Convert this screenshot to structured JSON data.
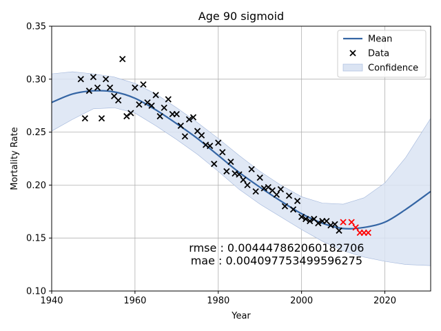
{
  "chart_data": {
    "type": "line",
    "title": "Age 90 sigmoid",
    "xlabel": "Year",
    "ylabel": "Mortality Rate",
    "xlim": [
      1940,
      2031
    ],
    "ylim": [
      0.1,
      0.35
    ],
    "x_ticks": [
      1940,
      1960,
      1980,
      2000,
      2020
    ],
    "y_ticks": [
      0.1,
      0.15,
      0.2,
      0.25,
      0.3,
      0.35
    ],
    "x_tick_labels": [
      "1940",
      "1960",
      "1980",
      "2000",
      "2020"
    ],
    "y_tick_labels": [
      "0.10",
      "0.15",
      "0.20",
      "0.25",
      "0.30",
      "0.35"
    ],
    "grid": true,
    "legend_position": "top-right",
    "legend": [
      {
        "label": "Mean",
        "kind": "line",
        "color": "#3465a4"
      },
      {
        "label": "Data",
        "kind": "marker-x",
        "color": "#000000"
      },
      {
        "label": "Confidence",
        "kind": "band",
        "color": "#dbe4f3"
      }
    ],
    "mean_curve": {
      "name": "Mean",
      "color": "#3465a4",
      "x": [
        1940,
        1945,
        1950,
        1955,
        1960,
        1965,
        1970,
        1975,
        1980,
        1985,
        1990,
        1995,
        2000,
        2005,
        2010,
        2015,
        2020,
        2025,
        2031
      ],
      "y": [
        0.278,
        0.286,
        0.289,
        0.288,
        0.282,
        0.271,
        0.258,
        0.244,
        0.228,
        0.212,
        0.198,
        0.185,
        0.173,
        0.164,
        0.159,
        0.16,
        0.165,
        0.177,
        0.194
      ]
    },
    "confidence_band": {
      "name": "Confidence",
      "color": "#dbe4f3",
      "x": [
        1940,
        1945,
        1950,
        1955,
        1960,
        1965,
        1970,
        1975,
        1980,
        1985,
        1990,
        1995,
        2000,
        2005,
        2010,
        2015,
        2020,
        2025,
        2031
      ],
      "upper": [
        0.305,
        0.307,
        0.305,
        0.302,
        0.296,
        0.286,
        0.273,
        0.259,
        0.244,
        0.228,
        0.213,
        0.2,
        0.189,
        0.183,
        0.182,
        0.188,
        0.202,
        0.226,
        0.263
      ],
      "lower": [
        0.251,
        0.262,
        0.272,
        0.273,
        0.268,
        0.256,
        0.243,
        0.229,
        0.213,
        0.196,
        0.182,
        0.17,
        0.158,
        0.147,
        0.138,
        0.132,
        0.128,
        0.125,
        0.124
      ]
    },
    "data_points": {
      "name": "Data",
      "color": "#000000",
      "x": [
        1947,
        1948,
        1949,
        1950,
        1951,
        1952,
        1953,
        1954,
        1955,
        1956,
        1957,
        1958,
        1959,
        1960,
        1961,
        1962,
        1963,
        1964,
        1965,
        1966,
        1967,
        1968,
        1969,
        1970,
        1971,
        1972,
        1973,
        1974,
        1975,
        1976,
        1977,
        1978,
        1979,
        1980,
        1981,
        1982,
        1983,
        1984,
        1985,
        1986,
        1987,
        1988,
        1989,
        1990,
        1991,
        1992,
        1993,
        1994,
        1995,
        1996,
        1997,
        1998,
        1999,
        2000,
        2001,
        2002,
        2003,
        2004,
        2005,
        2006,
        2007,
        2008,
        2009
      ],
      "y": [
        0.3,
        0.263,
        0.289,
        0.302,
        0.292,
        0.263,
        0.3,
        0.292,
        0.284,
        0.28,
        0.319,
        0.265,
        0.268,
        0.292,
        0.276,
        0.295,
        0.278,
        0.275,
        0.285,
        0.265,
        0.273,
        0.281,
        0.267,
        0.267,
        0.256,
        0.246,
        0.262,
        0.264,
        0.251,
        0.247,
        0.238,
        0.237,
        0.22,
        0.24,
        0.231,
        0.213,
        0.222,
        0.211,
        0.21,
        0.205,
        0.2,
        0.215,
        0.194,
        0.207,
        0.197,
        0.198,
        0.195,
        0.191,
        0.196,
        0.18,
        0.19,
        0.177,
        0.185,
        0.17,
        0.168,
        0.166,
        0.168,
        0.164,
        0.166,
        0.166,
        0.162,
        0.163,
        0.157
      ]
    },
    "test_points": {
      "color": "#ff0000",
      "x": [
        2010,
        2012,
        2013,
        2014,
        2015,
        2016
      ],
      "y": [
        0.165,
        0.165,
        0.16,
        0.155,
        0.155,
        0.155
      ]
    },
    "annotations": [
      {
        "text": "rmse : 0.004447862060182706",
        "x": 1994,
        "y": 0.137
      },
      {
        "text": "mae : 0.004097753499596275",
        "x": 1994,
        "y": 0.125
      }
    ]
  }
}
